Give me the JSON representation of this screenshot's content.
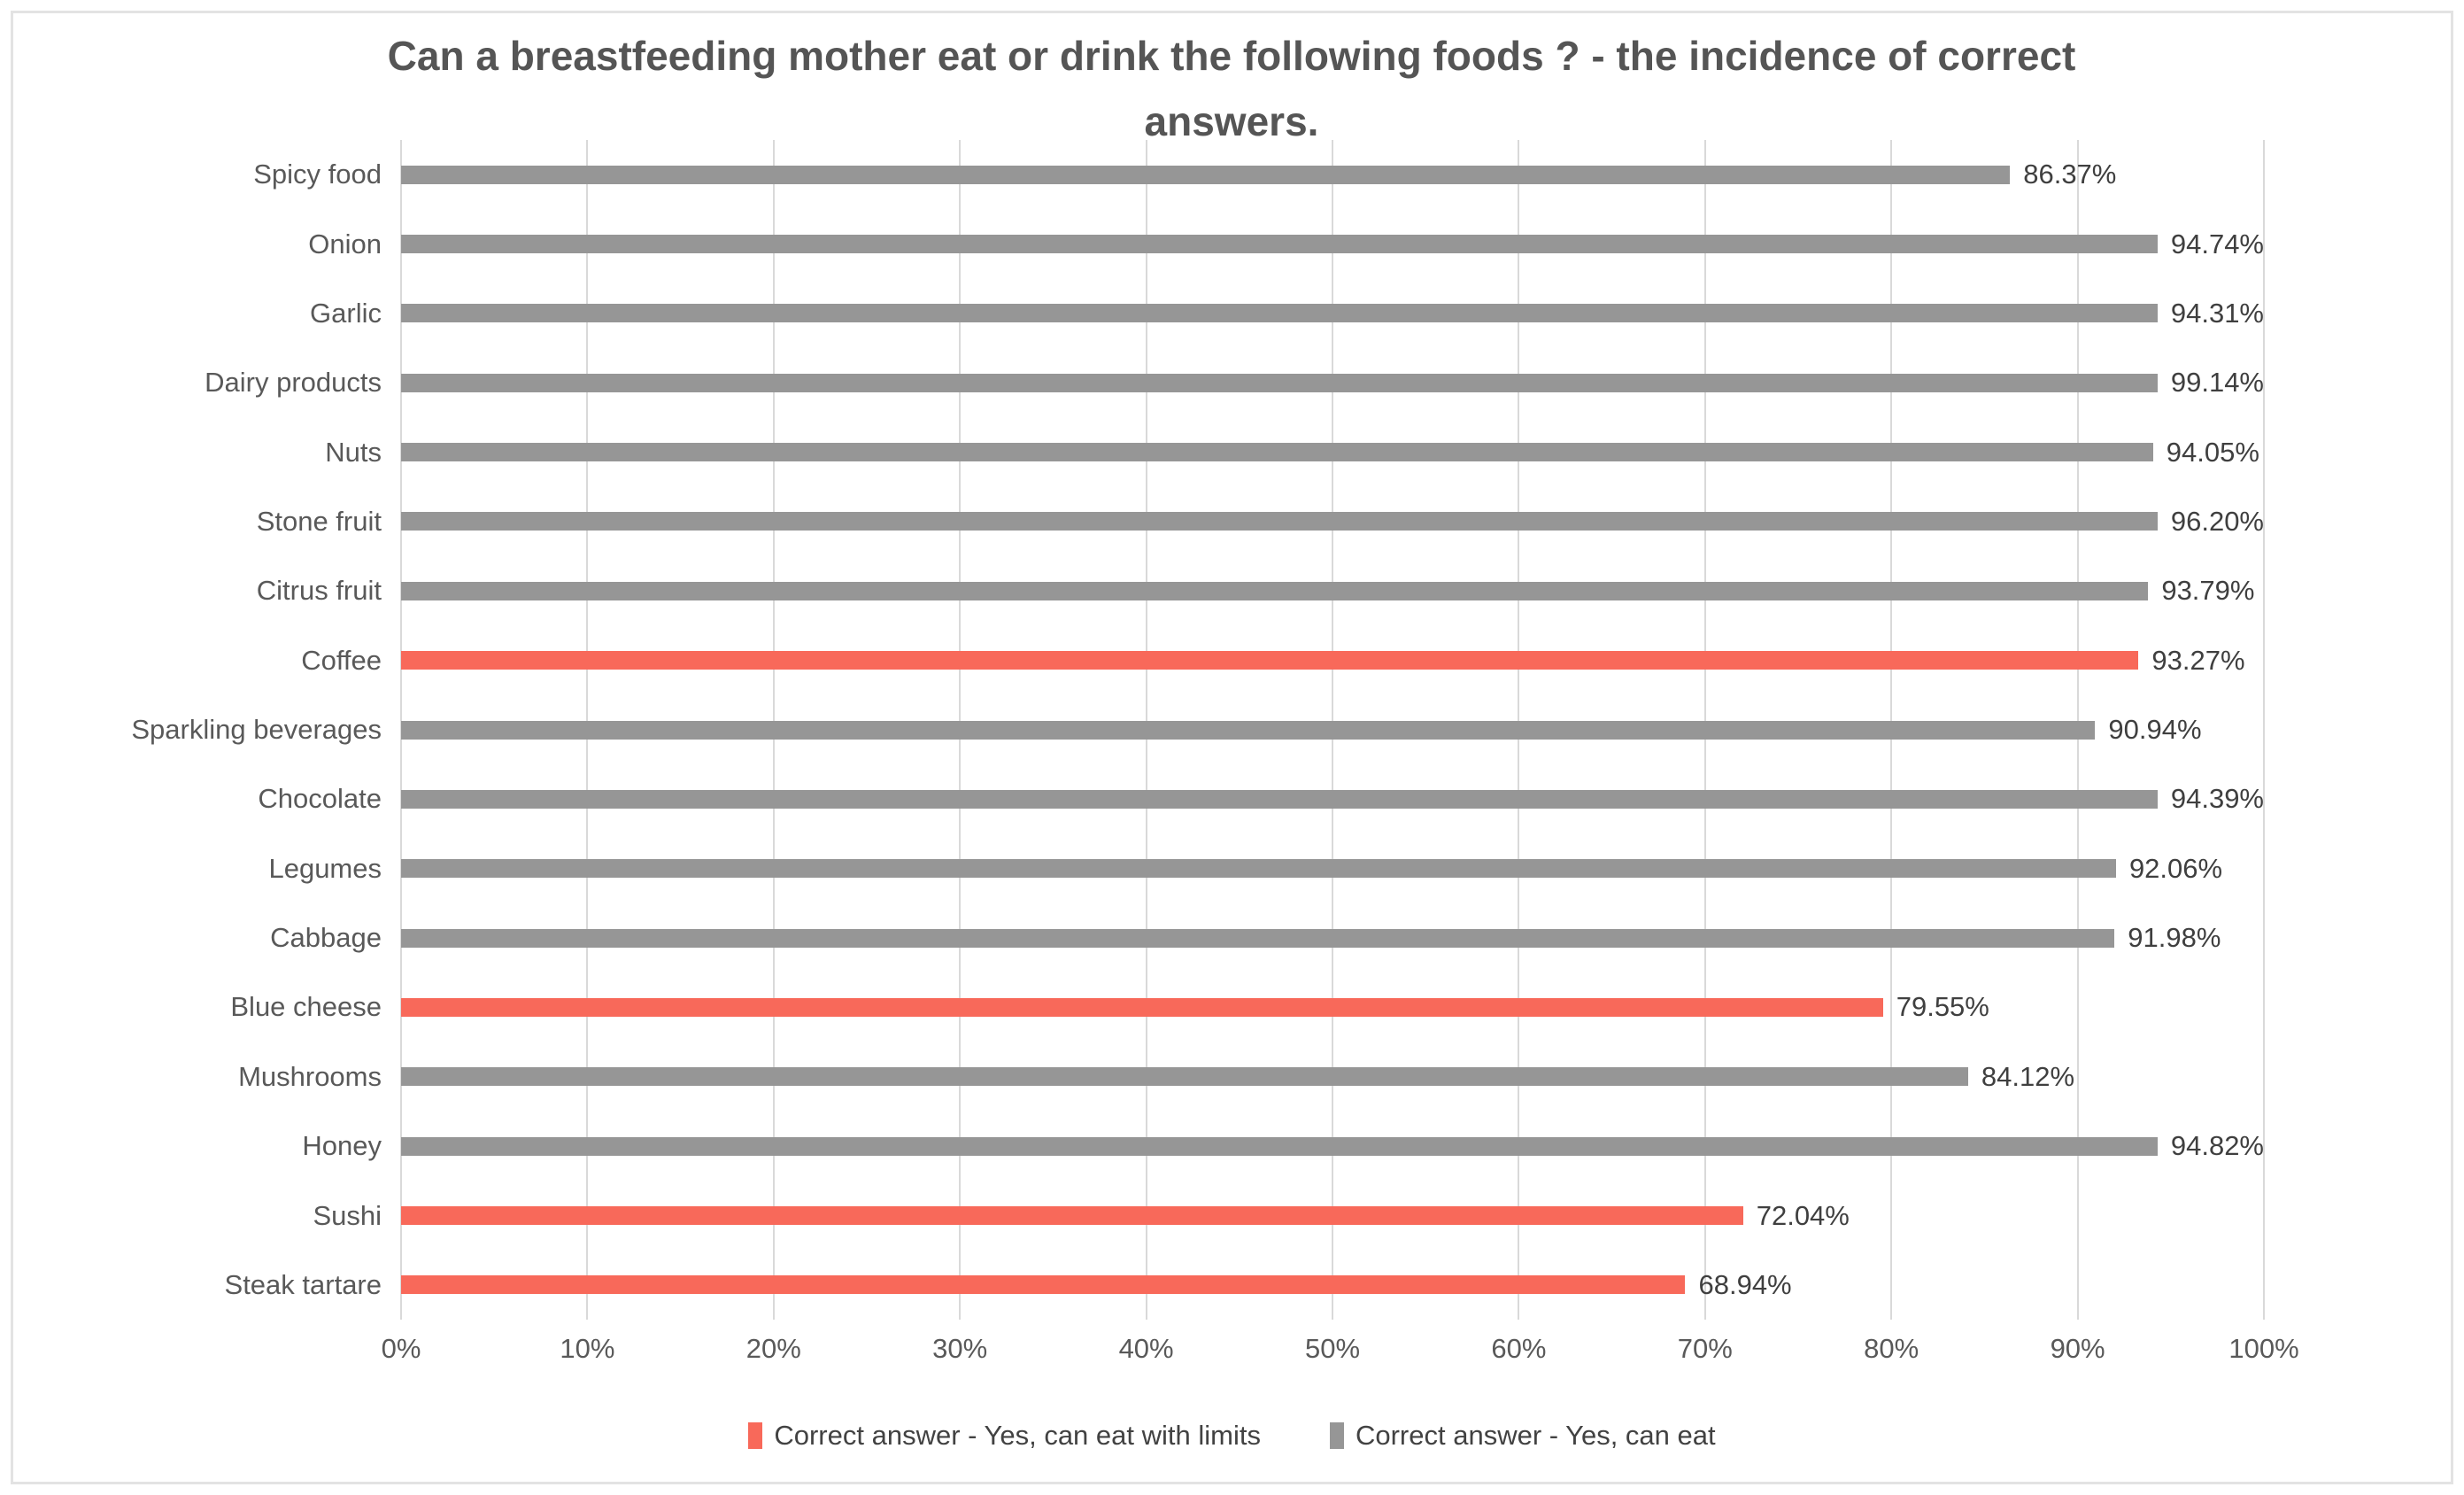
{
  "title_lines": [
    "Can a breastfeeding mother eat or drink the following foods ? - the incidence of correct",
    "answers."
  ],
  "chart_data": {
    "type": "bar",
    "orientation": "horizontal",
    "title": "Can a breastfeeding mother eat or drink the following foods ? - the incidence of correct answers.",
    "xlabel": "",
    "ylabel": "",
    "xlim": [
      0,
      100
    ],
    "x_ticks": [
      "0%",
      "10%",
      "20%",
      "30%",
      "40%",
      "50%",
      "60%",
      "70%",
      "80%",
      "90%",
      "100%"
    ],
    "grid": "vertical",
    "legend_position": "bottom",
    "value_labels": "outside-end",
    "categories": [
      "Spicy food",
      "Onion",
      "Garlic",
      "Dairy products",
      "Nuts",
      "Stone fruit",
      "Citrus fruit",
      "Coffee",
      "Sparkling beverages",
      "Chocolate",
      "Legumes",
      "Cabbage",
      "Blue cheese",
      "Mushrooms",
      "Honey",
      "Sushi",
      "Steak tartare"
    ],
    "series": [
      {
        "id": "with_limits",
        "name": "Correct answer - Yes, can eat with limits",
        "color": "#f8695a",
        "values": [
          null,
          null,
          null,
          null,
          null,
          null,
          null,
          93.27,
          null,
          null,
          null,
          null,
          79.55,
          null,
          null,
          72.04,
          68.94
        ]
      },
      {
        "id": "can_eat",
        "name": "Correct answer - Yes, can eat",
        "color": "#969696",
        "values": [
          86.37,
          94.74,
          94.31,
          99.14,
          94.05,
          96.2,
          93.79,
          null,
          90.94,
          94.39,
          92.06,
          91.98,
          null,
          84.12,
          94.82,
          null,
          null
        ]
      }
    ],
    "rows": [
      {
        "category": "Spicy food",
        "value": 86.37,
        "label": "86.37%",
        "series": "can_eat"
      },
      {
        "category": "Onion",
        "value": 94.74,
        "label": "94.74%",
        "series": "can_eat"
      },
      {
        "category": "Garlic",
        "value": 94.31,
        "label": "94.31%",
        "series": "can_eat"
      },
      {
        "category": "Dairy products",
        "value": 99.14,
        "label": "99.14%",
        "series": "can_eat"
      },
      {
        "category": "Nuts",
        "value": 94.05,
        "label": "94.05%",
        "series": "can_eat"
      },
      {
        "category": "Stone fruit",
        "value": 96.2,
        "label": "96.20%",
        "series": "can_eat"
      },
      {
        "category": "Citrus fruit",
        "value": 93.79,
        "label": "93.79%",
        "series": "can_eat"
      },
      {
        "category": "Coffee",
        "value": 93.27,
        "label": "93.27%",
        "series": "with_limits"
      },
      {
        "category": "Sparkling beverages",
        "value": 90.94,
        "label": "90.94%",
        "series": "can_eat"
      },
      {
        "category": "Chocolate",
        "value": 94.39,
        "label": "94.39%",
        "series": "can_eat"
      },
      {
        "category": "Legumes",
        "value": 92.06,
        "label": "92.06%",
        "series": "can_eat"
      },
      {
        "category": "Cabbage",
        "value": 91.98,
        "label": "91.98%",
        "series": "can_eat"
      },
      {
        "category": "Blue cheese",
        "value": 79.55,
        "label": "79.55%",
        "series": "with_limits"
      },
      {
        "category": "Mushrooms",
        "value": 84.12,
        "label": "84.12%",
        "series": "can_eat"
      },
      {
        "category": "Honey",
        "value": 94.82,
        "label": "94.82%",
        "series": "can_eat"
      },
      {
        "category": "Sushi",
        "value": 72.04,
        "label": "72.04%",
        "series": "with_limits"
      },
      {
        "category": "Steak tartare",
        "value": 68.94,
        "label": "68.94%",
        "series": "with_limits"
      }
    ]
  },
  "legend": {
    "items": [
      {
        "label": "Correct answer - Yes, can eat with limits",
        "color": "#f8695a"
      },
      {
        "label": "Correct answer - Yes, can eat",
        "color": "#969696"
      }
    ]
  },
  "colors": {
    "with_limits": "#f8695a",
    "can_eat": "#969696",
    "gridline": "#d9d9d9",
    "axis_text": "#595959",
    "value_text": "#3f3f3f",
    "title_text": "#555555",
    "border": "#e3e3e3"
  }
}
